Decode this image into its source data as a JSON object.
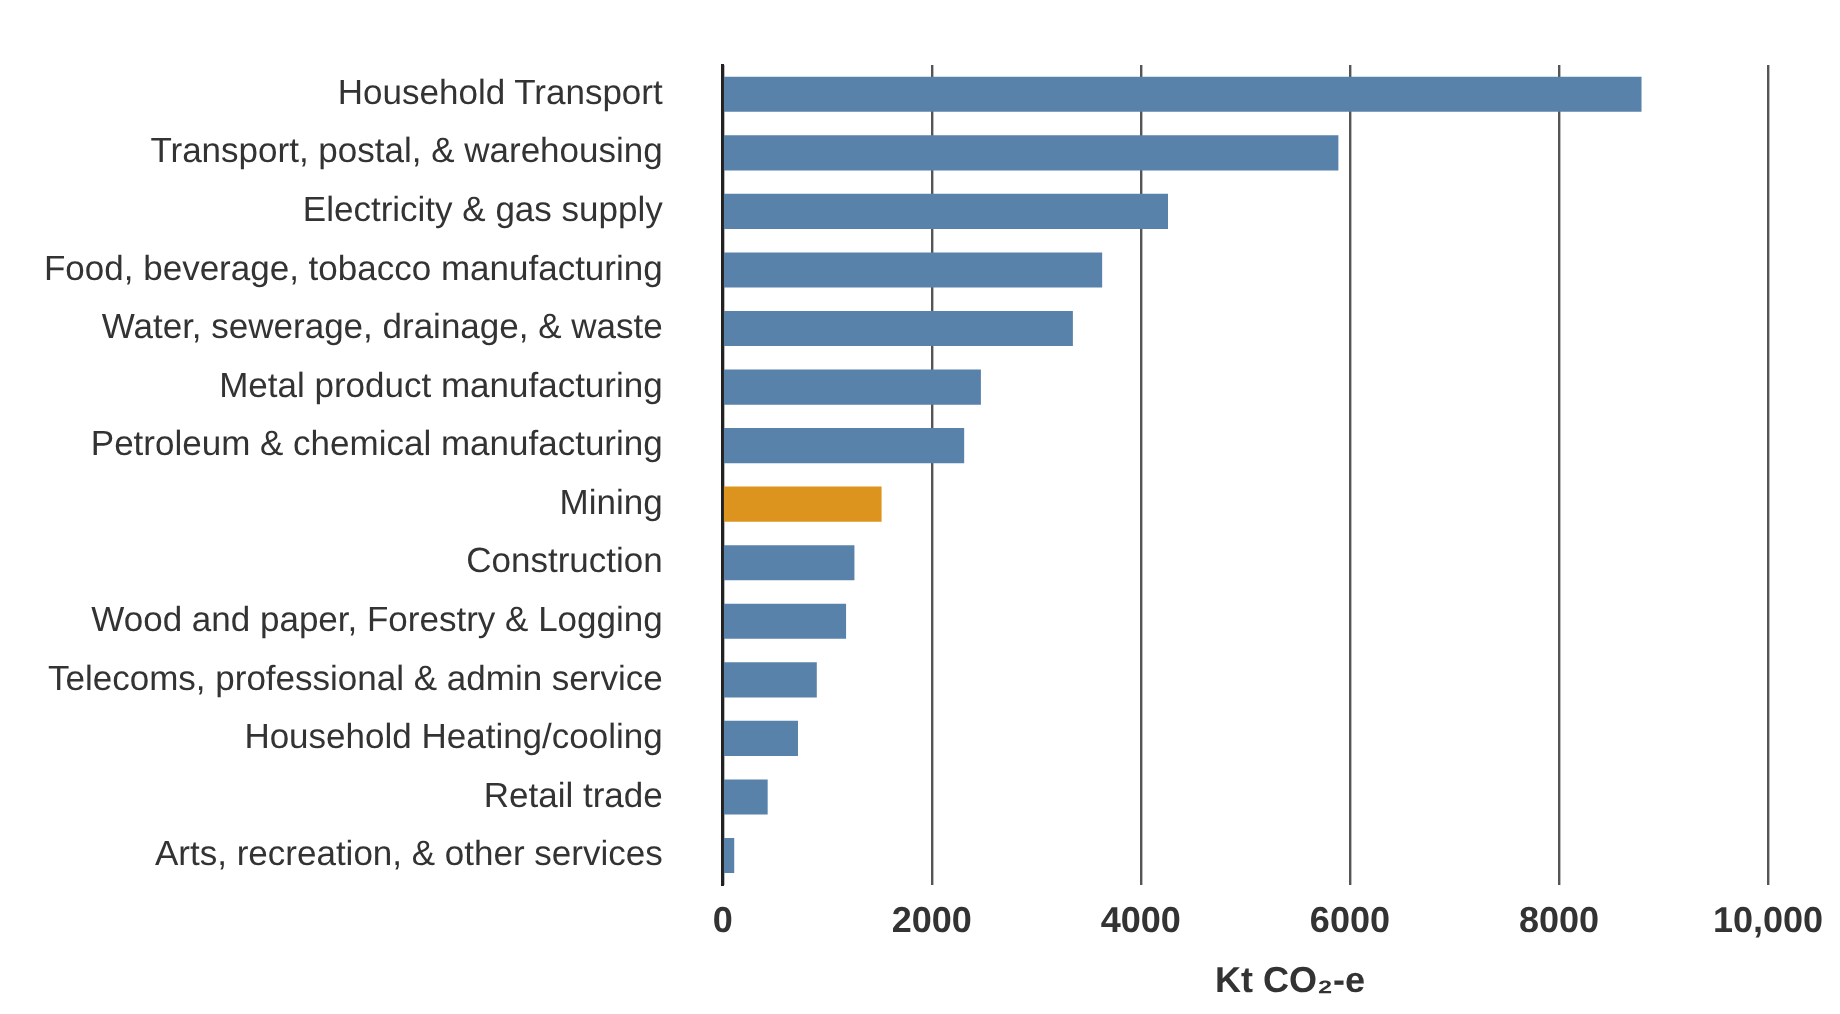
{
  "chart_data": {
    "type": "bar",
    "orientation": "horizontal",
    "xlabel": "Kt CO₂-e",
    "categories": [
      "Household Transport",
      "Transport, postal, & warehousing",
      "Electricity & gas supply",
      "Food, beverage, tobacco manufacturing",
      "Water, sewerage, drainage, & waste",
      "Metal product manufacturing",
      "Petroleum & chemical manufacturing",
      "Mining",
      "Construction",
      "Wood and paper, Forestry & Logging",
      "Telecoms, professional & admin service",
      "Household Heating/cooling",
      "Retail trade",
      "Arts, recreation, & other services"
    ],
    "values": [
      8790,
      5890,
      4260,
      3630,
      3350,
      2470,
      2310,
      1520,
      1260,
      1180,
      900,
      720,
      430,
      110
    ],
    "colors": [
      "#5882aa",
      "#5882aa",
      "#5882aa",
      "#5882aa",
      "#5882aa",
      "#5882aa",
      "#5882aa",
      "#dc941e",
      "#5882aa",
      "#5882aa",
      "#5882aa",
      "#5882aa",
      "#5882aa",
      "#5882aa"
    ],
    "xlim": [
      0,
      10000
    ],
    "xticks": [
      0,
      2000,
      4000,
      6000,
      8000,
      {
        "value": 10000,
        "label": "10,000"
      }
    ],
    "grid": "x",
    "legend": false
  }
}
